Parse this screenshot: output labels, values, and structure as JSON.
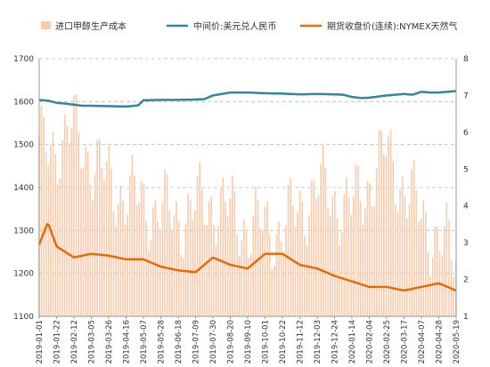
{
  "chart_data": {
    "type": "bar+line",
    "title": "",
    "legend": [
      {
        "name": "进口甲醇生产成本",
        "kind": "bar",
        "color": "#F8CBAD"
      },
      {
        "name": "中间价:美元兑人民币",
        "kind": "line",
        "color": "#31859C"
      },
      {
        "name": "期货收盘价(连续):NYMEX天然气",
        "kind": "line",
        "color": "#E36C09"
      }
    ],
    "legend_position": "top",
    "grid": "dashed-horizontal",
    "y_left": {
      "min": 1100,
      "max": 1700,
      "ticks": [
        1100,
        1200,
        1300,
        1400,
        1500,
        1600,
        1700
      ]
    },
    "y_right": {
      "min": 1,
      "max": 8,
      "ticks": [
        1,
        2,
        3,
        4,
        5,
        6,
        7,
        8
      ]
    },
    "x_ticks": [
      "2019-01-01",
      "2019-01-22",
      "2019-02-12",
      "2019-03-05",
      "2019-03-26",
      "2019-04-16",
      "2019-05-07",
      "2019-05-28",
      "2019-06-18",
      "2019-07-09",
      "2019-07-30",
      "2019-08-20",
      "2019-09-10",
      "2019-10-01",
      "2019-10-22",
      "2019-11-12",
      "2019-12-03",
      "2019-12-24",
      "2020-01-14",
      "2020-02-04",
      "2020-02-25",
      "2020-03-17",
      "2020-04-07",
      "2020-04-28",
      "2020-05-19"
    ],
    "series": [
      {
        "name": "进口甲醇生产成本",
        "axis": "left",
        "type": "bar",
        "knots_x": [
          0,
          2,
          4,
          6,
          8,
          10,
          12,
          14,
          16,
          18,
          20,
          22,
          24
        ],
        "knots_y": [
          1480,
          1530,
          1410,
          1360,
          1330,
          1370,
          1310,
          1300,
          1400,
          1350,
          1480,
          1330,
          1230
        ],
        "noise_amplitude": 110
      },
      {
        "name": "中间价:美元兑人民币",
        "axis": "right",
        "type": "line",
        "knots_x": [
          0,
          0.5,
          1,
          1.5,
          2,
          2.5,
          3,
          4,
          5,
          5.7,
          6,
          7,
          8,
          9,
          9.5,
          10,
          11,
          12,
          13,
          14,
          15,
          16,
          17,
          17.5,
          18,
          18.5,
          19,
          20,
          21,
          21.5,
          22,
          22.5,
          23,
          24
        ],
        "knots_y": [
          6.88,
          6.86,
          6.8,
          6.78,
          6.75,
          6.72,
          6.72,
          6.71,
          6.7,
          6.73,
          6.87,
          6.88,
          6.88,
          6.89,
          6.9,
          7.0,
          7.08,
          7.08,
          7.06,
          7.05,
          7.03,
          7.04,
          7.03,
          7.02,
          6.96,
          6.93,
          6.94,
          7.0,
          7.04,
          7.02,
          7.1,
          7.08,
          7.08,
          7.12
        ]
      },
      {
        "name": "期货收盘价(连续):NYMEX天然气",
        "axis": "right",
        "type": "line",
        "knots_x": [
          0,
          0.5,
          1,
          1.5,
          2,
          3,
          4,
          5,
          6,
          7,
          8,
          9,
          10,
          11,
          12,
          13,
          14,
          15,
          16,
          17,
          18,
          19,
          20,
          21,
          22,
          23,
          24
        ],
        "knots_y": [
          2.95,
          3.55,
          2.9,
          2.75,
          2.6,
          2.7,
          2.65,
          2.55,
          2.55,
          2.35,
          2.25,
          2.2,
          2.6,
          2.4,
          2.3,
          2.7,
          2.7,
          2.4,
          2.3,
          2.1,
          1.95,
          1.8,
          1.8,
          1.7,
          1.8,
          1.9,
          1.7
        ]
      }
    ]
  }
}
